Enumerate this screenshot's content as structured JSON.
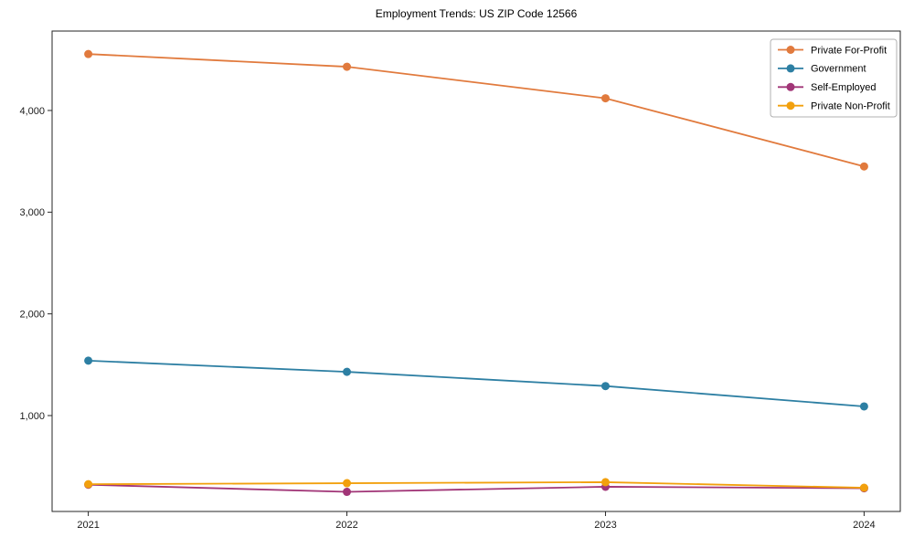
{
  "chart_data": {
    "type": "line",
    "title": "Employment Trends: US ZIP Code 12566",
    "x": [
      2021,
      2022,
      2023,
      2024
    ],
    "x_tick_labels": [
      "2021",
      "2022",
      "2023",
      "2024"
    ],
    "y_ticks": [
      1000,
      2000,
      3000,
      4000
    ],
    "y_tick_labels": [
      "1,000",
      "2,000",
      "3,000",
      "4,000"
    ],
    "xlim": [
      2020.86,
      2024.14
    ],
    "ylim": [
      57,
      4781
    ],
    "grid": false,
    "legend_position": "upper right",
    "series": [
      {
        "name": "Private For-Profit",
        "color": "#e17a3d",
        "values": [
          4555,
          4430,
          4120,
          3450
        ]
      },
      {
        "name": "Government",
        "color": "#2d7fa3",
        "values": [
          1540,
          1430,
          1290,
          1090
        ]
      },
      {
        "name": "Self-Employed",
        "color": "#a13577",
        "values": [
          320,
          250,
          300,
          285
        ]
      },
      {
        "name": "Private Non-Profit",
        "color": "#f2a00d",
        "values": [
          325,
          335,
          345,
          290
        ]
      }
    ]
  },
  "style": {
    "spine_color": "#262626",
    "tick_text_color": "#1a1a1a",
    "legend_border_color": "#b0b0b0",
    "background": "#ffffff"
  }
}
